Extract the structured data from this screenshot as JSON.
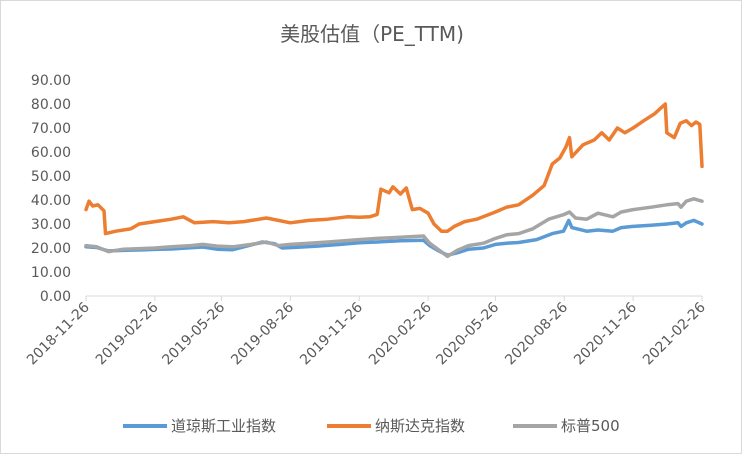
{
  "chart_data": {
    "type": "line",
    "title": "美股估值（PE_TTM)",
    "xlabel": "",
    "ylabel": "",
    "ylim": [
      0,
      90
    ],
    "yticks": [
      "0.00",
      "10.00",
      "20.00",
      "30.00",
      "40.00",
      "50.00",
      "60.00",
      "70.00",
      "80.00",
      "90.00"
    ],
    "x_start": "2018-11-26",
    "x_end": "2021-02-26",
    "xticks": [
      "2018-11-26",
      "2019-02-26",
      "2019-05-26",
      "2019-08-26",
      "2019-11-26",
      "2020-02-26",
      "2020-05-26",
      "2020-08-26",
      "2020-11-26",
      "2021-02-26"
    ],
    "grid": false,
    "legend": "bottom",
    "series": [
      {
        "name": "道琼斯工业指数",
        "color": "#5b9bd5",
        "points": [
          [
            "2018-11-26",
            20.5
          ],
          [
            "2018-12-10",
            20.2
          ],
          [
            "2018-12-26",
            18.8
          ],
          [
            "2019-01-15",
            19.0
          ],
          [
            "2019-02-10",
            19.2
          ],
          [
            "2019-02-26",
            19.4
          ],
          [
            "2019-03-20",
            19.6
          ],
          [
            "2019-04-15",
            20.1
          ],
          [
            "2019-05-01",
            20.4
          ],
          [
            "2019-05-20",
            19.5
          ],
          [
            "2019-06-10",
            19.3
          ],
          [
            "2019-06-25",
            20.5
          ],
          [
            "2019-07-20",
            22.5
          ],
          [
            "2019-08-05",
            21.8
          ],
          [
            "2019-08-15",
            20.0
          ],
          [
            "2019-09-05",
            20.3
          ],
          [
            "2019-10-01",
            20.8
          ],
          [
            "2019-11-01",
            21.5
          ],
          [
            "2019-11-26",
            22.2
          ],
          [
            "2019-12-20",
            22.5
          ],
          [
            "2020-01-20",
            23.0
          ],
          [
            "2020-02-20",
            23.2
          ],
          [
            "2020-02-28",
            21.0
          ],
          [
            "2020-03-10",
            19.0
          ],
          [
            "2020-03-23",
            17.0
          ],
          [
            "2020-04-05",
            18.0
          ],
          [
            "2020-04-20",
            19.5
          ],
          [
            "2020-05-10",
            20.0
          ],
          [
            "2020-05-26",
            21.5
          ],
          [
            "2020-06-10",
            22.0
          ],
          [
            "2020-06-26",
            22.3
          ],
          [
            "2020-07-20",
            23.5
          ],
          [
            "2020-08-10",
            26.0
          ],
          [
            "2020-08-25",
            27.0
          ],
          [
            "2020-09-01",
            31.5
          ],
          [
            "2020-09-05",
            28.5
          ],
          [
            "2020-09-25",
            27.0
          ],
          [
            "2020-10-10",
            27.5
          ],
          [
            "2020-10-30",
            27.0
          ],
          [
            "2020-11-10",
            28.5
          ],
          [
            "2020-11-26",
            29.0
          ],
          [
            "2020-12-20",
            29.5
          ],
          [
            "2021-01-10",
            30.0
          ],
          [
            "2021-01-25",
            30.5
          ],
          [
            "2021-01-29",
            29.0
          ],
          [
            "2021-02-05",
            30.5
          ],
          [
            "2021-02-15",
            31.5
          ],
          [
            "2021-02-26",
            30.0
          ]
        ]
      },
      {
        "name": "纳斯达克指数",
        "color": "#ed7d31",
        "points": [
          [
            "2018-11-26",
            36.0
          ],
          [
            "2018-11-30",
            39.5
          ],
          [
            "2018-12-05",
            37.5
          ],
          [
            "2018-12-12",
            38.0
          ],
          [
            "2018-12-20",
            35.5
          ],
          [
            "2018-12-22",
            26.0
          ],
          [
            "2019-01-05",
            27.0
          ],
          [
            "2019-01-25",
            28.0
          ],
          [
            "2019-02-05",
            30.0
          ],
          [
            "2019-02-26",
            31.0
          ],
          [
            "2019-03-20",
            32.0
          ],
          [
            "2019-04-05",
            33.0
          ],
          [
            "2019-04-20",
            30.5
          ],
          [
            "2019-05-15",
            31.0
          ],
          [
            "2019-06-05",
            30.5
          ],
          [
            "2019-06-25",
            31.0
          ],
          [
            "2019-07-25",
            32.5
          ],
          [
            "2019-08-10",
            31.5
          ],
          [
            "2019-08-26",
            30.5
          ],
          [
            "2019-09-20",
            31.5
          ],
          [
            "2019-10-15",
            32.0
          ],
          [
            "2019-11-10",
            33.0
          ],
          [
            "2019-11-26",
            32.8
          ],
          [
            "2019-12-10",
            33.0
          ],
          [
            "2019-12-20",
            34.0
          ],
          [
            "2019-12-25",
            44.5
          ],
          [
            "2020-01-05",
            43.0
          ],
          [
            "2020-01-10",
            45.5
          ],
          [
            "2020-01-20",
            42.5
          ],
          [
            "2020-01-28",
            45.0
          ],
          [
            "2020-02-05",
            36.0
          ],
          [
            "2020-02-15",
            36.5
          ],
          [
            "2020-02-26",
            34.5
          ],
          [
            "2020-03-05",
            30.0
          ],
          [
            "2020-03-15",
            27.0
          ],
          [
            "2020-03-23",
            27.0
          ],
          [
            "2020-04-01",
            29.0
          ],
          [
            "2020-04-15",
            31.0
          ],
          [
            "2020-05-01",
            32.0
          ],
          [
            "2020-05-26",
            35.0
          ],
          [
            "2020-06-10",
            37.0
          ],
          [
            "2020-06-26",
            38.0
          ],
          [
            "2020-07-15",
            42.0
          ],
          [
            "2020-07-30",
            46.0
          ],
          [
            "2020-08-10",
            55.0
          ],
          [
            "2020-08-20",
            57.5
          ],
          [
            "2020-08-28",
            62.0
          ],
          [
            "2020-09-02",
            66.0
          ],
          [
            "2020-09-05",
            58.0
          ],
          [
            "2020-09-20",
            63.0
          ],
          [
            "2020-10-05",
            65.0
          ],
          [
            "2020-10-15",
            68.0
          ],
          [
            "2020-10-25",
            65.0
          ],
          [
            "2020-11-05",
            70.0
          ],
          [
            "2020-11-15",
            68.0
          ],
          [
            "2020-11-26",
            70.0
          ],
          [
            "2020-12-10",
            73.0
          ],
          [
            "2020-12-25",
            76.0
          ],
          [
            "2021-01-08",
            80.0
          ],
          [
            "2021-01-10",
            68.0
          ],
          [
            "2021-01-20",
            66.0
          ],
          [
            "2021-01-28",
            72.0
          ],
          [
            "2021-02-05",
            73.0
          ],
          [
            "2021-02-12",
            71.0
          ],
          [
            "2021-02-18",
            72.5
          ],
          [
            "2021-02-23",
            71.5
          ],
          [
            "2021-02-26",
            54.0
          ]
        ]
      },
      {
        "name": "标普500",
        "color": "#a5a5a5",
        "points": [
          [
            "2018-11-26",
            21.0
          ],
          [
            "2018-12-10",
            20.5
          ],
          [
            "2018-12-26",
            18.5
          ],
          [
            "2019-01-15",
            19.5
          ],
          [
            "2019-02-10",
            19.8
          ],
          [
            "2019-02-26",
            20.0
          ],
          [
            "2019-03-20",
            20.5
          ],
          [
            "2019-04-15",
            21.0
          ],
          [
            "2019-05-01",
            21.5
          ],
          [
            "2019-05-20",
            20.8
          ],
          [
            "2019-06-10",
            20.5
          ],
          [
            "2019-07-05",
            21.5
          ],
          [
            "2019-07-25",
            22.5
          ],
          [
            "2019-08-10",
            21.0
          ],
          [
            "2019-08-26",
            21.5
          ],
          [
            "2019-09-20",
            22.0
          ],
          [
            "2019-10-15",
            22.5
          ],
          [
            "2019-11-26",
            23.5
          ],
          [
            "2019-12-20",
            24.0
          ],
          [
            "2020-01-20",
            24.5
          ],
          [
            "2020-02-20",
            25.0
          ],
          [
            "2020-02-28",
            22.0
          ],
          [
            "2020-03-10",
            19.5
          ],
          [
            "2020-03-23",
            16.5
          ],
          [
            "2020-04-05",
            19.0
          ],
          [
            "2020-04-20",
            21.0
          ],
          [
            "2020-05-10",
            22.0
          ],
          [
            "2020-05-26",
            24.0
          ],
          [
            "2020-06-10",
            25.5
          ],
          [
            "2020-06-26",
            26.0
          ],
          [
            "2020-07-15",
            28.0
          ],
          [
            "2020-08-05",
            32.0
          ],
          [
            "2020-08-26",
            34.0
          ],
          [
            "2020-09-02",
            35.0
          ],
          [
            "2020-09-10",
            32.5
          ],
          [
            "2020-09-25",
            32.0
          ],
          [
            "2020-10-10",
            34.5
          ],
          [
            "2020-10-30",
            33.0
          ],
          [
            "2020-11-10",
            35.0
          ],
          [
            "2020-11-26",
            36.0
          ],
          [
            "2020-12-20",
            37.0
          ],
          [
            "2021-01-10",
            38.0
          ],
          [
            "2021-01-25",
            38.5
          ],
          [
            "2021-01-29",
            37.0
          ],
          [
            "2021-02-05",
            39.5
          ],
          [
            "2021-02-15",
            40.5
          ],
          [
            "2021-02-26",
            39.5
          ]
        ]
      }
    ]
  }
}
